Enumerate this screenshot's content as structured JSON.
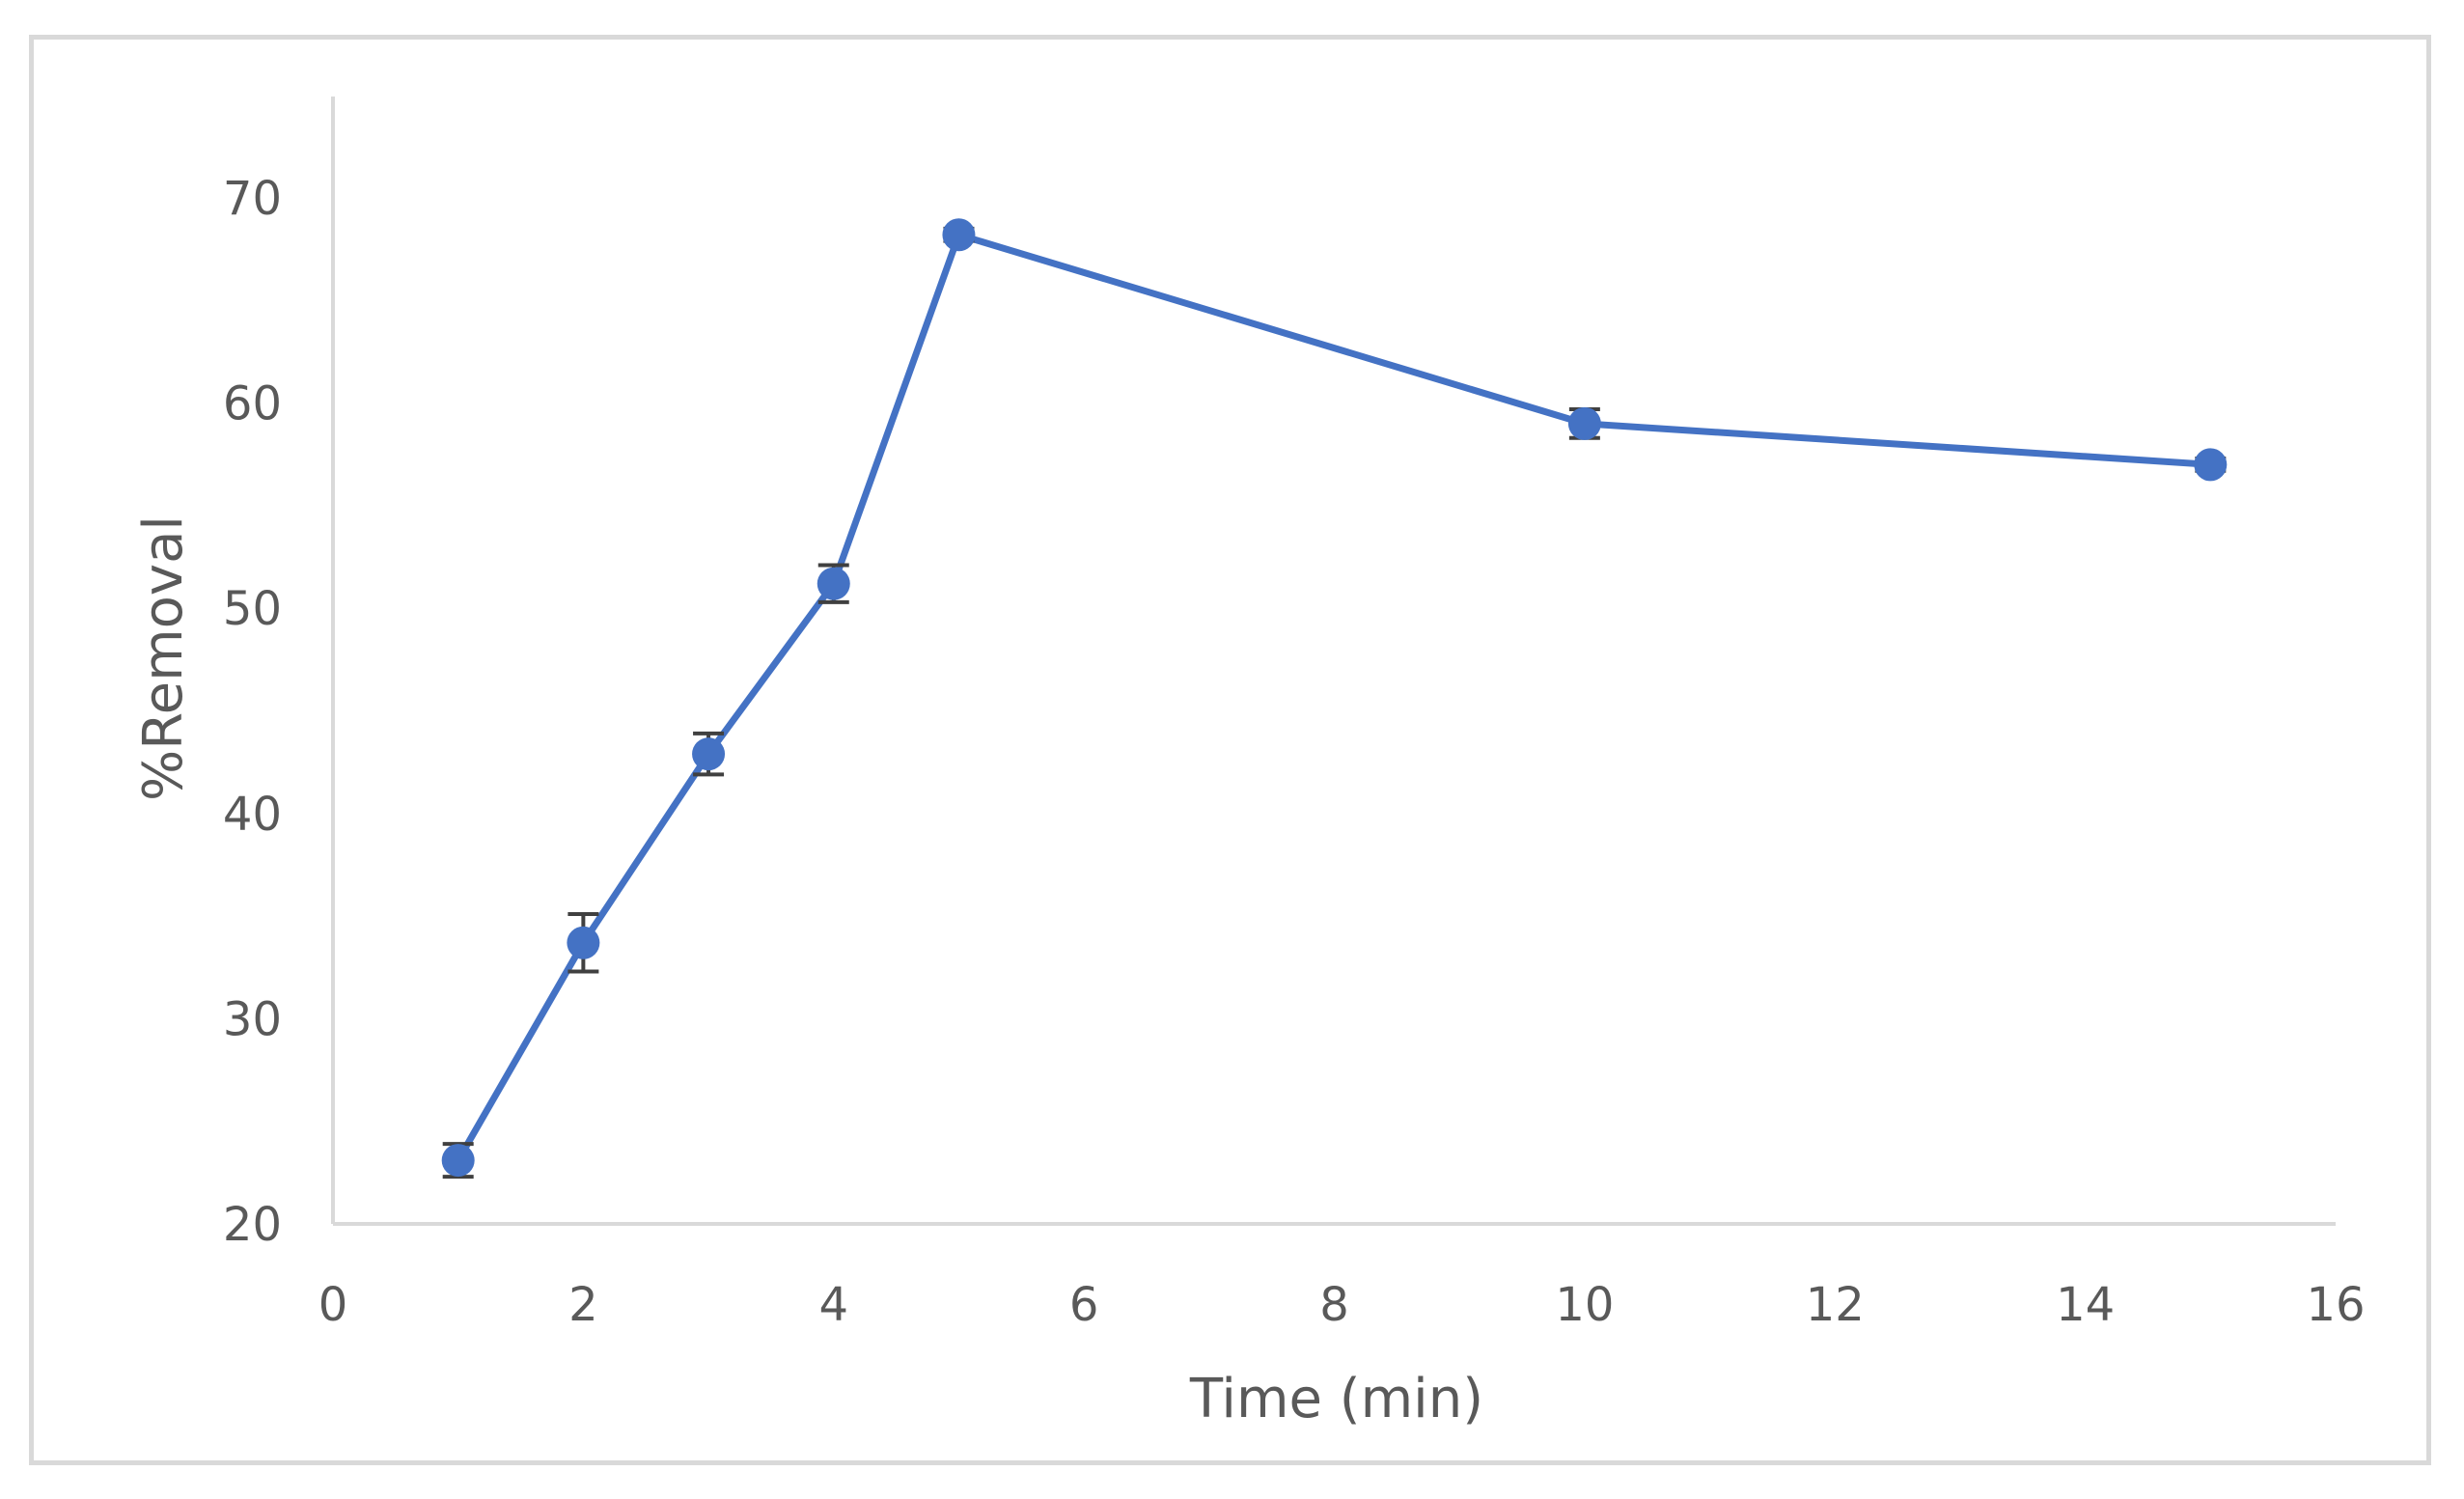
{
  "chart_data": {
    "type": "line",
    "xlabel": "Time (min)",
    "ylabel": "%Removal",
    "xlim": [
      0,
      16
    ],
    "ylim": [
      20,
      70
    ],
    "x_ticks": [
      0,
      2,
      4,
      6,
      8,
      10,
      12,
      14,
      16
    ],
    "y_ticks": [
      20,
      30,
      40,
      50,
      60,
      70
    ],
    "grid": false,
    "legend": "none",
    "series": [
      {
        "color": "#4472c4",
        "x": [
          1,
          2,
          3,
          4,
          5,
          10,
          15
        ],
        "y": [
          23.1,
          33.7,
          42.9,
          51.2,
          68.2,
          59.0,
          57.0
        ],
        "error": [
          0.8,
          1.4,
          1.0,
          0.9,
          0.3,
          0.7,
          0.3
        ]
      }
    ],
    "error_bar_color": "#404040",
    "axis_color": "#d9d9d9"
  }
}
